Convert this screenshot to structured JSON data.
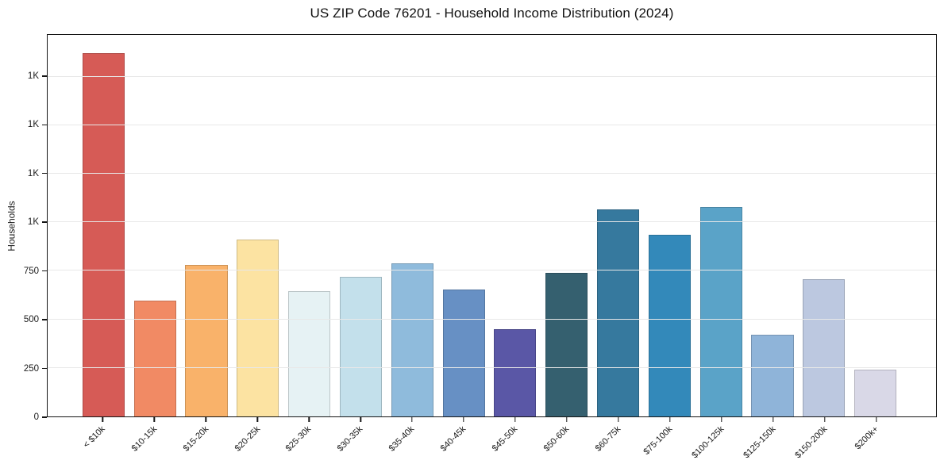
{
  "chart_data": {
    "type": "bar",
    "title": "US ZIP Code 76201 - Household Income Distribution (2024)",
    "xlabel": "",
    "ylabel": "Households",
    "categories": [
      "< $10k",
      "$10-15k",
      "$15-20k",
      "$20-25k",
      "$25-30k",
      "$30-35k",
      "$35-40k",
      "$40-45k",
      "$45-50k",
      "$50-60k",
      "$60-75k",
      "$75-100k",
      "$100-125k",
      "$125-150k",
      "$150-200k",
      "$200k+"
    ],
    "values": [
      1870,
      595,
      780,
      910,
      645,
      720,
      790,
      655,
      450,
      740,
      1065,
      935,
      1080,
      420,
      705,
      240
    ],
    "bar_colors": [
      "#d65b56",
      "#f18a64",
      "#f9b26a",
      "#fce3a2",
      "#e6f2f4",
      "#c3e0eb",
      "#8fbbdc",
      "#6790c4",
      "#5a57a6",
      "#35606f",
      "#36799e",
      "#3389ba",
      "#5aa3c8",
      "#8fb4d9",
      "#bcc8e0",
      "#d9d8e7"
    ],
    "yticks": [
      {
        "value": 0,
        "label": "0"
      },
      {
        "value": 250,
        "label": "250"
      },
      {
        "value": 500,
        "label": "500"
      },
      {
        "value": 750,
        "label": "750"
      },
      {
        "value": 1000,
        "label": "1K"
      },
      {
        "value": 1250,
        "label": "1K"
      },
      {
        "value": 1500,
        "label": "1K"
      },
      {
        "value": 1750,
        "label": "1K"
      }
    ],
    "ylim": [
      0,
      1965
    ],
    "grid": "horizontal",
    "legend": "none",
    "background_color": "#ffffff",
    "spine_color": "#151515",
    "gridline_color": "#e8e8e8",
    "tick_label_color": "#1a1a1a"
  }
}
